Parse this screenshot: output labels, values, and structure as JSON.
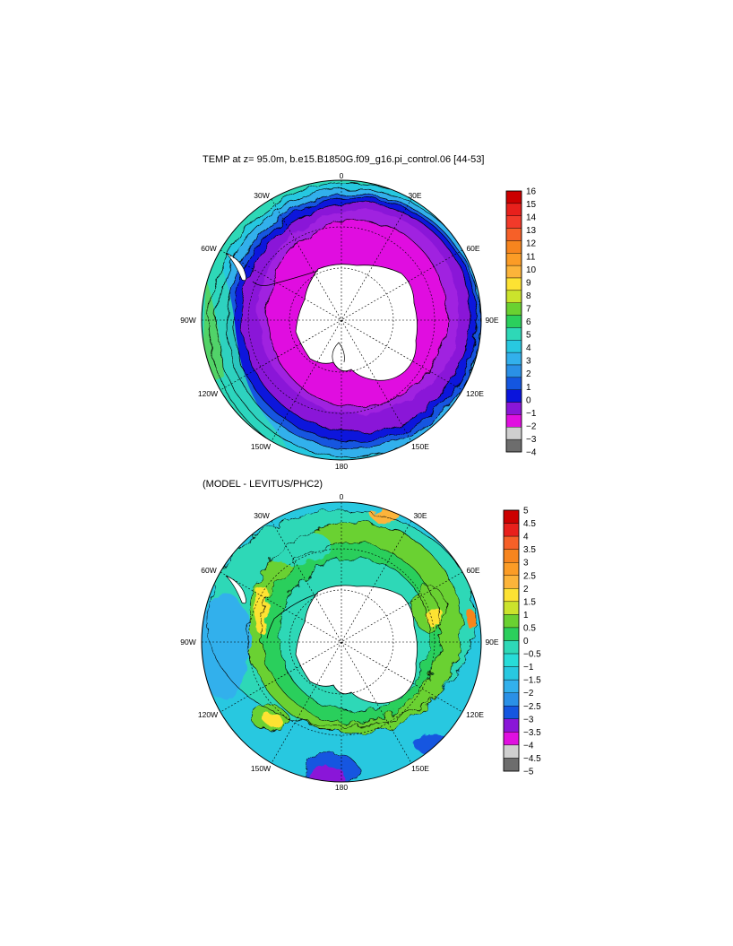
{
  "panel_top": {
    "title": "TEMP at z=  95.0m, b.e15.B1850G.f09_g16.pi_control.06 [44-53]",
    "lon_labels": [
      "0",
      "30E",
      "60E",
      "90E",
      "120E",
      "150E",
      "180",
      "150W",
      "120W",
      "90W",
      "60W",
      "30W"
    ],
    "colorbar": {
      "labels": [
        "16",
        "15",
        "14",
        "13",
        "12",
        "11",
        "10",
        "9",
        "8",
        "7",
        "6",
        "5",
        "4",
        "3",
        "2",
        "1",
        "0",
        "−1",
        "−2",
        "−3",
        "−4"
      ],
      "colors": [
        "#cc0000",
        "#e8201c",
        "#f23a2a",
        "#f66028",
        "#f7851e",
        "#fb9c26",
        "#fcb43a",
        "#fde233",
        "#cbe32c",
        "#6ad131",
        "#2bcf5c",
        "#2ed8b7",
        "#28c8e0",
        "#32b0ec",
        "#2a90e6",
        "#1456e0",
        "#0a14dc",
        "#8a16d8",
        "#e010e0",
        "#cfcfcf",
        "#6d6d6d"
      ]
    }
  },
  "panel_bottom": {
    "title": "(MODEL - LEVITUS/PHC2)",
    "lon_labels": [
      "0",
      "30E",
      "60E",
      "90E",
      "120E",
      "150E",
      "180",
      "150W",
      "120W",
      "90W",
      "60W",
      "30W"
    ],
    "colorbar": {
      "labels": [
        "5",
        "4.5",
        "4",
        "3.5",
        "3",
        "2.5",
        "2",
        "1.5",
        "1",
        "0.5",
        "0",
        "−0.5",
        "−1",
        "−1.5",
        "−2",
        "−2.5",
        "−3",
        "−3.5",
        "−4",
        "−4.5",
        "−5"
      ],
      "colors": [
        "#cc0000",
        "#e8201c",
        "#f66028",
        "#f7851e",
        "#fb9c26",
        "#fcb43a",
        "#fde233",
        "#cbe32c",
        "#6ad131",
        "#2bcf5c",
        "#2ed8b7",
        "#28dcd8",
        "#28c8e0",
        "#32b0ec",
        "#2a90e6",
        "#1456e0",
        "#8a16d8",
        "#e010e0",
        "#cfcfcf",
        "#6d6d6d"
      ]
    }
  }
}
